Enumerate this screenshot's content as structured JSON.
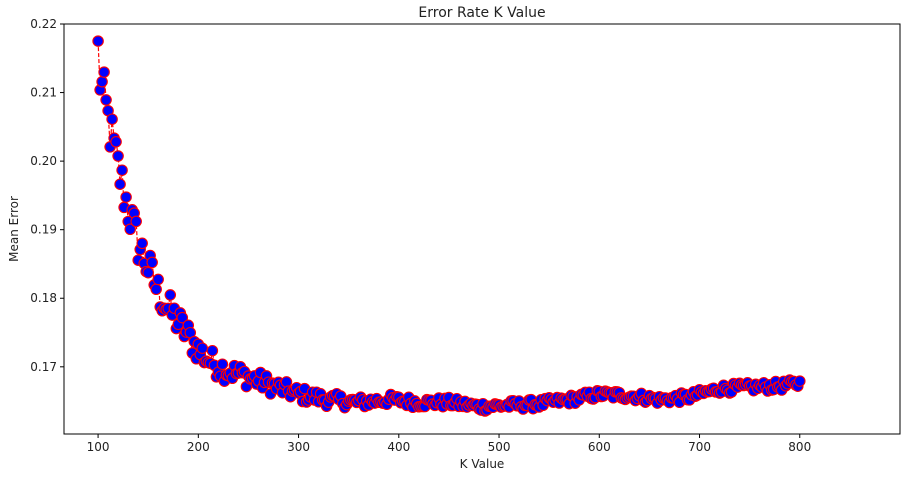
{
  "chart_data": {
    "type": "line",
    "title": "Error Rate K Value",
    "xlabel": "K Value",
    "ylabel": "Mean Error",
    "xlim": [
      66,
      900
    ],
    "ylim": [
      0.1602,
      0.22
    ],
    "xticks": [
      100,
      200,
      300,
      400,
      500,
      600,
      700,
      800
    ],
    "xtick_labels": [
      "100",
      "200",
      "300",
      "400",
      "500",
      "600",
      "700",
      "800"
    ],
    "yticks": [
      0.17,
      0.18,
      0.19,
      0.2,
      0.21,
      0.22
    ],
    "ytick_labels": [
      "0.17",
      "0.18",
      "0.19",
      "0.20",
      "0.21",
      "0.22"
    ],
    "grid": false,
    "series": [
      {
        "name": "Mean Error",
        "line_color": "#ff0000",
        "line_style": "dashed",
        "marker": "circle",
        "marker_face": "#0000ff",
        "marker_edge": "#ff0000",
        "x_range": [
          100,
          800
        ],
        "x_step": 2,
        "curve_keypoints": {
          "x": [
            100,
            110,
            120,
            130,
            140,
            150,
            160,
            170,
            180,
            190,
            200,
            210,
            225,
            250,
            275,
            300,
            330,
            360,
            390,
            420,
            450,
            480,
            510,
            540,
            570,
            600,
            630,
            660,
            690,
            720,
            750,
            780,
            800
          ],
          "y": [
            0.2135,
            0.206,
            0.199,
            0.193,
            0.188,
            0.1845,
            0.181,
            0.1785,
            0.1765,
            0.1745,
            0.1725,
            0.171,
            0.1697,
            0.1685,
            0.1672,
            0.166,
            0.1652,
            0.1648,
            0.1652,
            0.1648,
            0.1648,
            0.1642,
            0.1644,
            0.1646,
            0.1652,
            0.166,
            0.1658,
            0.1652,
            0.1656,
            0.1668,
            0.167,
            0.1672,
            0.1676
          ]
        },
        "noise_amplitude_start": 0.0042,
        "noise_amplitude_end": 0.0007
      }
    ]
  }
}
